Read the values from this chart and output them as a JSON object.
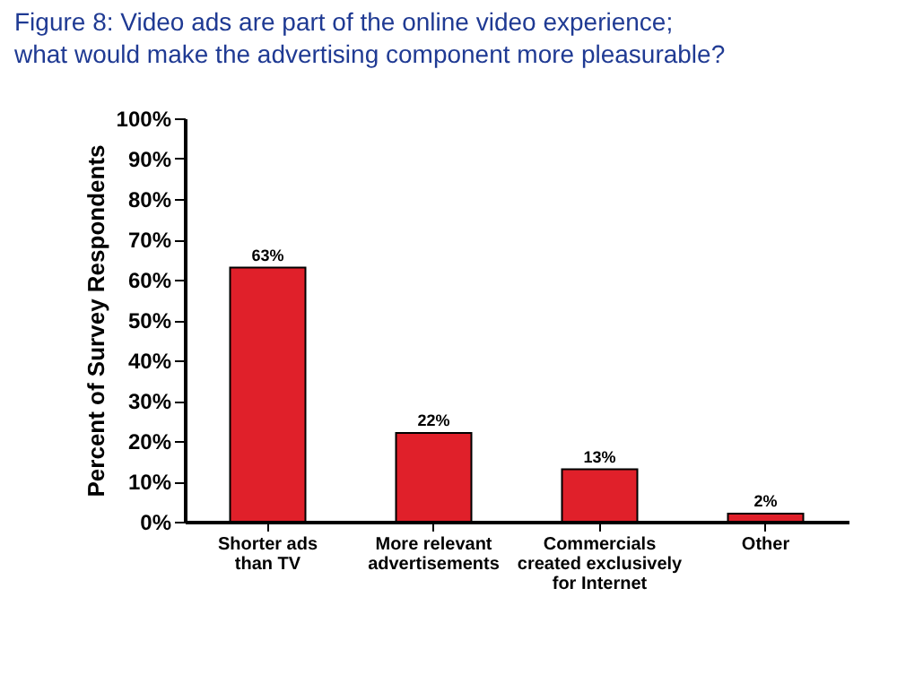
{
  "chart_data": {
    "type": "bar",
    "title": "Figure 8: Video ads are part of the online video experience;\nwhat would make the advertising component more pleasurable?",
    "ylabel": "Percent of Survey Respondents",
    "categories": [
      "Shorter ads\nthan TV",
      "More relevant\nadvertisements",
      "Commercials\ncreated exclusively\nfor Internet",
      "Other"
    ],
    "values": [
      63,
      22,
      13,
      2
    ],
    "value_labels": [
      "63%",
      "22%",
      "13%",
      "2%"
    ],
    "color": "#e0202a",
    "ylim": [
      0,
      100
    ],
    "yticks": [
      {
        "value": 0,
        "label": "0%"
      },
      {
        "value": 10,
        "label": "10%"
      },
      {
        "value": 20,
        "label": "20%"
      },
      {
        "value": 30,
        "label": "30%"
      },
      {
        "value": 40,
        "label": "40%"
      },
      {
        "value": 50,
        "label": "50%"
      },
      {
        "value": 60,
        "label": "60%"
      },
      {
        "value": 70,
        "label": "70%"
      },
      {
        "value": 80,
        "label": "80%"
      },
      {
        "value": 90,
        "label": "90%"
      },
      {
        "value": 100,
        "label": "100%"
      }
    ],
    "grid": false
  }
}
